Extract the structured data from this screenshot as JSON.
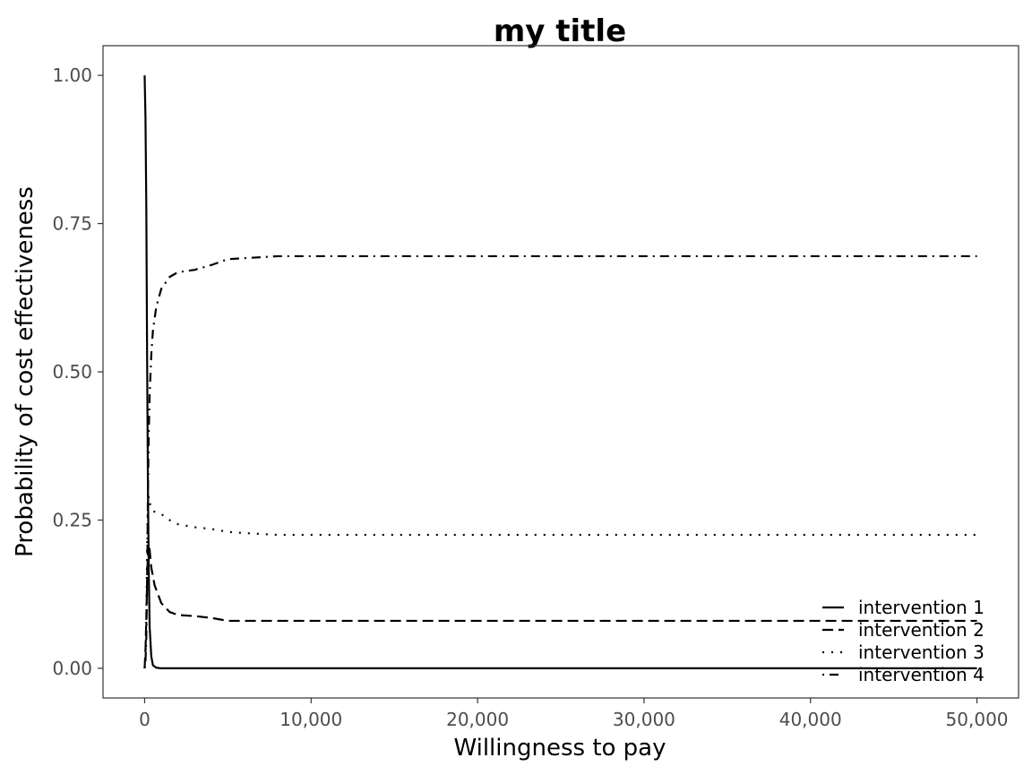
{
  "chart_data": {
    "type": "line",
    "title": "my title",
    "xlabel": "Willingness to pay",
    "ylabel": "Probability of cost effectiveness",
    "xlim": [
      -2500,
      52500
    ],
    "ylim": [
      -0.05,
      1.05
    ],
    "x_ticks": [
      0,
      10000,
      20000,
      30000,
      40000,
      50000
    ],
    "x_tick_labels": [
      "0",
      "10,000",
      "20,000",
      "30,000",
      "40,000",
      "50,000"
    ],
    "y_ticks": [
      0,
      0.25,
      0.5,
      0.75,
      1
    ],
    "y_tick_labels": [
      "0.00",
      "0.25",
      "0.50",
      "0.75",
      "1.00"
    ],
    "grid": false,
    "legend_position": "bottom-right",
    "series": [
      {
        "name": "intervention 1",
        "linetype": "solid",
        "color": "#000000",
        "x": [
          0,
          50,
          100,
          150,
          200,
          250,
          300,
          400,
          500,
          700,
          1000,
          2000,
          5000,
          10000,
          20000,
          30000,
          40000,
          50000
        ],
        "y": [
          1.0,
          0.93,
          0.78,
          0.52,
          0.3,
          0.16,
          0.07,
          0.02,
          0.005,
          0.001,
          0,
          0,
          0,
          0,
          0,
          0,
          0,
          0
        ]
      },
      {
        "name": "intervention 2",
        "linetype": "dashed",
        "color": "#000000",
        "x": [
          0,
          50,
          100,
          150,
          200,
          250,
          300,
          400,
          600,
          800,
          1000,
          1500,
          2000,
          3000,
          4000,
          5000,
          10000,
          20000,
          30000,
          40000,
          50000
        ],
        "y": [
          0,
          0.03,
          0.08,
          0.15,
          0.2,
          0.21,
          0.2,
          0.17,
          0.14,
          0.125,
          0.11,
          0.095,
          0.09,
          0.088,
          0.085,
          0.08,
          0.08,
          0.08,
          0.08,
          0.08,
          0.08
        ]
      },
      {
        "name": "intervention 3",
        "linetype": "dotted",
        "color": "#000000",
        "x": [
          0,
          50,
          100,
          150,
          200,
          250,
          300,
          400,
          500,
          1000,
          1500,
          2000,
          3000,
          4000,
          5000,
          6000,
          8000,
          10000,
          20000,
          30000,
          40000,
          50000
        ],
        "y": [
          0,
          0.02,
          0.08,
          0.2,
          0.28,
          0.29,
          0.28,
          0.27,
          0.265,
          0.26,
          0.25,
          0.243,
          0.238,
          0.235,
          0.23,
          0.228,
          0.225,
          0.225,
          0.225,
          0.225,
          0.225,
          0.225
        ]
      },
      {
        "name": "intervention 4",
        "linetype": "dotdash",
        "color": "#000000",
        "x": [
          0,
          50,
          100,
          150,
          200,
          250,
          300,
          400,
          500,
          700,
          1000,
          1500,
          2000,
          3000,
          4000,
          5000,
          8000,
          10000,
          20000,
          30000,
          40000,
          50000
        ],
        "y": [
          0,
          0.01,
          0.05,
          0.15,
          0.3,
          0.4,
          0.46,
          0.53,
          0.57,
          0.61,
          0.64,
          0.66,
          0.668,
          0.672,
          0.68,
          0.69,
          0.695,
          0.695,
          0.695,
          0.695,
          0.695,
          0.695
        ]
      }
    ]
  }
}
